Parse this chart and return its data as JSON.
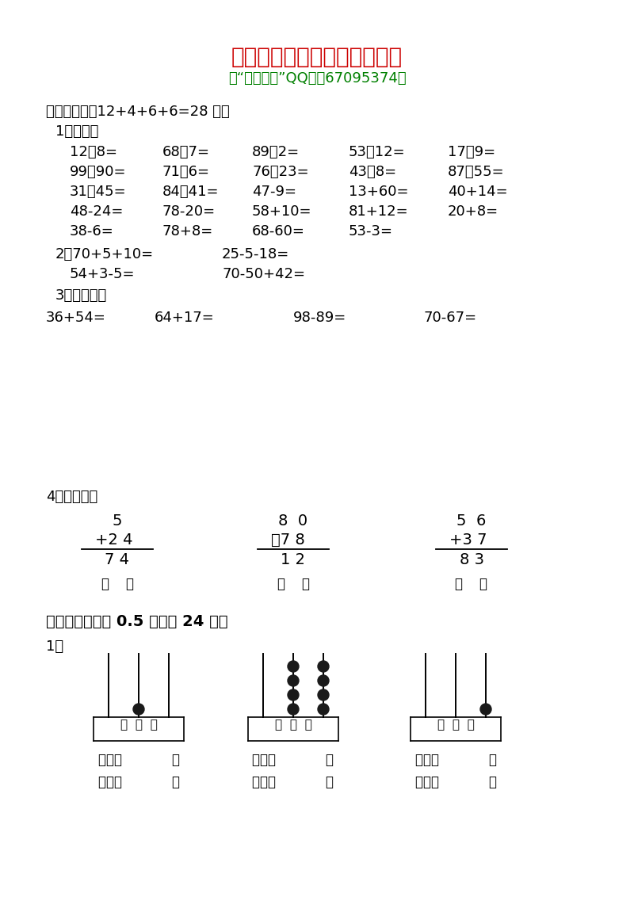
{
  "title": "小学一年级数学下册期末试卷",
  "subtitle": "（“家庭奥数”QQ群：67095374）",
  "title_color": "#cc0000",
  "subtitle_color": "#008000",
  "bg_color": "#ffffff",
  "section1_header": "一、计算。（12+4+6+6=28 分）",
  "sub1": "1、口算。",
  "row1": [
    "12－8=",
    "68＋7=",
    "89＋2=",
    "53－12=",
    "17＋9="
  ],
  "row2": [
    "99－90=",
    "71－6=",
    "76＋23=",
    "43＋8=",
    "87－55="
  ],
  "row3": [
    "31＋45=",
    "84－41=",
    "47-9=",
    "13+60=",
    "40+14="
  ],
  "row4": [
    "48-24=",
    "78-20=",
    "58+10=",
    "81+12=",
    "20+8="
  ],
  "row5": [
    "38-6=",
    "78+8=",
    "68-60=",
    "53-3=",
    ""
  ],
  "sub2": "2、70+5+10=",
  "sub2b": "25-5-18=",
  "sub2c": "54+3-5=",
  "sub2d": "70-50+42=",
  "sub3": "3、紖式计算",
  "vertical_calcs": [
    "36+54=",
    "64+17=",
    "98-89=",
    "70-67="
  ],
  "sub4": "4、病题门诊",
  "prob1_top": "5",
  "prob1_op": "+2 4",
  "prob1_result": "7 4",
  "prob2_top": "8  0",
  "prob2_op": "－7 8",
  "prob2_result": "1 2",
  "prob3_top": "5  6",
  "prob3_op": "+3 7",
  "prob3_result": "8 3",
  "section2_header": "二、填空（每空 0.5 分，共 24 分）",
  "sub_fill1": "1、",
  "abacus_label": "百  十  个",
  "write_label": "写作（            ）",
  "read_label": "读作（            ）",
  "abacus1_beads": {
    "shi": 1,
    "ge": 0,
    "bai": 0
  },
  "abacus2_beads": {
    "shi": 4,
    "ge": 4,
    "bai": 0
  },
  "abacus3_beads": {
    "shi": 0,
    "ge": 1,
    "bai": 0
  }
}
